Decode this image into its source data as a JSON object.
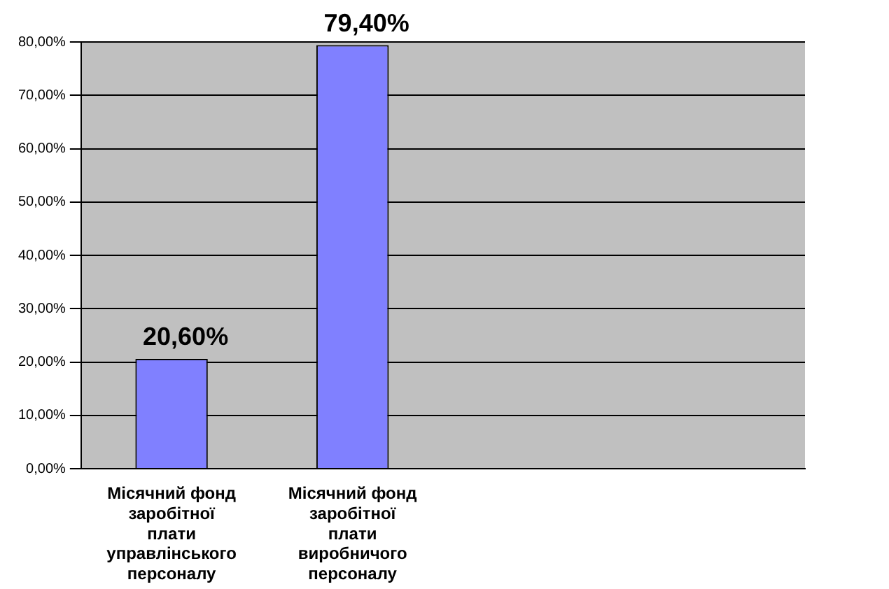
{
  "chart_data": {
    "type": "bar",
    "categories": [
      "Місячний фонд заробітної плати управлінського персоналу",
      "Місячний фонд заробітної плати виробничого персоналу",
      null,
      null
    ],
    "values": [
      20.6,
      79.4,
      null,
      null
    ],
    "value_labels": [
      "20,60%",
      "79,40%",
      null,
      null
    ],
    "color": "#8080ff",
    "ylim": [
      0,
      80
    ],
    "yticks": [
      {
        "value": 0,
        "label": "0,00%"
      },
      {
        "value": 10,
        "label": "10,00%"
      },
      {
        "value": 20,
        "label": "20,00%"
      },
      {
        "value": 30,
        "label": "30,00%"
      },
      {
        "value": 40,
        "label": "40,00%"
      },
      {
        "value": 50,
        "label": "50,00%"
      },
      {
        "value": 60,
        "label": "60,00%"
      },
      {
        "value": 70,
        "label": "70,00%"
      },
      {
        "value": 80,
        "label": "80,00%"
      }
    ],
    "grid": "y",
    "legend": false
  }
}
